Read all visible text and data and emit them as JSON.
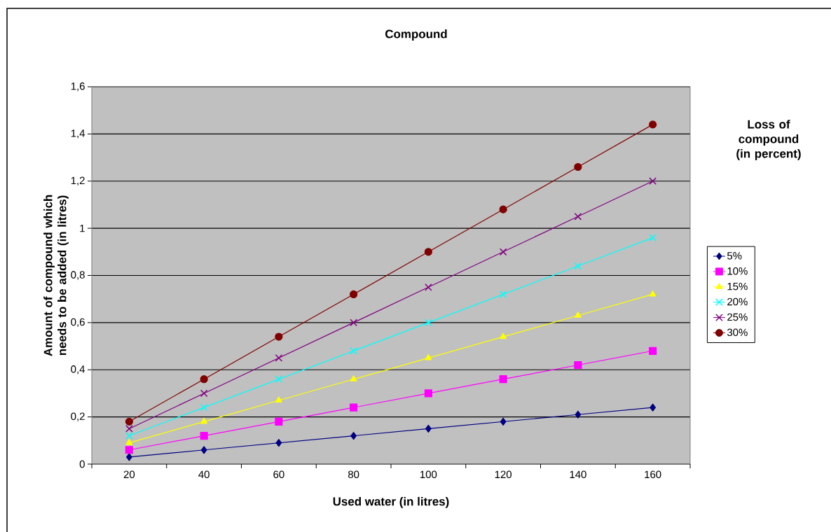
{
  "chart_data": {
    "type": "line",
    "title": "Compound",
    "xlabel": "Used water (in litres)",
    "ylabel": "Amount of compound which needs to be added (in litres)",
    "legend_title": "Loss of compound (in percent)",
    "categories": [
      "20",
      "40",
      "60",
      "80",
      "100",
      "120",
      "140",
      "160"
    ],
    "ylim": [
      0,
      1.6
    ],
    "yticks": [
      0,
      {
        "value": 0.2,
        "label": "0,2"
      },
      {
        "value": 0.4,
        "label": "0,4"
      },
      {
        "value": 0.6,
        "label": "0,6"
      },
      {
        "value": 0.8,
        "label": "0,8"
      },
      1,
      {
        "value": 1.2,
        "label": "1,2"
      },
      {
        "value": 1.4,
        "label": "1,4"
      },
      {
        "value": 1.6,
        "label": "1,6"
      }
    ],
    "grid": "y",
    "legend": "right",
    "series": [
      {
        "name": "5%",
        "color": "#000080",
        "marker": "diamond",
        "values": [
          0.03,
          0.06,
          0.09,
          0.12,
          0.15,
          0.18,
          0.21,
          0.24
        ]
      },
      {
        "name": "10%",
        "color": "#ff00ff",
        "marker": "square",
        "values": [
          0.06,
          0.12,
          0.18,
          0.24,
          0.3,
          0.36,
          0.42,
          0.48
        ]
      },
      {
        "name": "15%",
        "color": "#ffff00",
        "marker": "triangle",
        "values": [
          0.09,
          0.18,
          0.27,
          0.36,
          0.45,
          0.54,
          0.63,
          0.72
        ]
      },
      {
        "name": "20%",
        "color": "#00ffff",
        "marker": "cross",
        "values": [
          0.12,
          0.24,
          0.36,
          0.48,
          0.6,
          0.72,
          0.84,
          0.96
        ]
      },
      {
        "name": "25%",
        "color": "#800080",
        "marker": "cross",
        "values": [
          0.15,
          0.3,
          0.45,
          0.6,
          0.75,
          0.9,
          1.05,
          1.2
        ]
      },
      {
        "name": "30%",
        "color": "#800000",
        "marker": "circle",
        "values": [
          0.18,
          0.36,
          0.54,
          0.72,
          0.9,
          1.08,
          1.26,
          1.44
        ]
      }
    ]
  }
}
